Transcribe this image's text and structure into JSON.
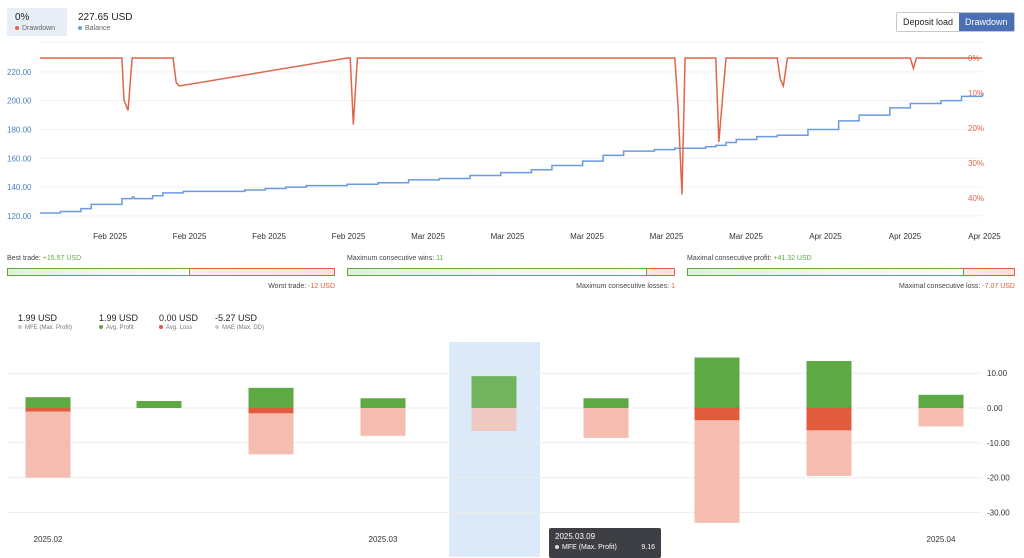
{
  "header": {
    "drawdown_value": "0%",
    "drawdown_label": "Drawdown",
    "balance_value": "227.65 USD",
    "balance_label": "Balance",
    "btn_deposit_load": "Deposit load",
    "btn_drawdown": "Drawdown"
  },
  "colors": {
    "drawdown": "#e0664a",
    "balance": "#6a9be0",
    "profit": "#5fa944",
    "loss": "#e05c3c",
    "mae": "#f4bdb0",
    "mfe_dot": "#cccccc",
    "highlight": "#d6e5f7"
  },
  "chart1": {
    "y_ticks_left": [
      "220.00",
      "200.00",
      "180.00",
      "160.00",
      "140.00",
      "120.00"
    ],
    "y_ticks_right": [
      "0%",
      "10%",
      "20%",
      "30%",
      "40%"
    ],
    "x_ticks": [
      "Feb 2025",
      "Feb 2025",
      "Feb 2025",
      "Feb 2025",
      "Mar 2025",
      "Mar 2025",
      "Mar 2025",
      "Mar 2025",
      "Mar 2025",
      "Apr 2025",
      "Apr 2025",
      "Apr 2025"
    ]
  },
  "stats": {
    "best_trade_label": "Best trade:",
    "best_trade_value": "+15.57 USD",
    "worst_trade_label": "Worst trade:",
    "worst_trade_value": "-12 USD",
    "max_consec_wins_label": "Maximum consecutive wins:",
    "max_consec_wins_value": "11",
    "max_consec_losses_label": "Maximum consecutive losses:",
    "max_consec_losses_value": "1",
    "max_consec_profit_label": "Maximal consecutive profit:",
    "max_consec_profit_value": "+41.32 USD",
    "max_consec_loss_label": "Maximal consecutive loss:",
    "max_consec_loss_value": "-7.07 USD",
    "best_fill": 0.56,
    "wins_fill": 0.92,
    "profit_fill": 0.85
  },
  "metrics": [
    {
      "value": "1.99 USD",
      "label": "MFE (Max. Profit)",
      "color": "#cccccc"
    },
    {
      "value": "1.99 USD",
      "label": "Avg. Profit",
      "color": "#5fa944"
    },
    {
      "value": "0.00 USD",
      "label": "Avg. Loss",
      "color": "#e05c3c"
    },
    {
      "value": "-5.27 USD",
      "label": "MAE (Max. DD)",
      "color": "#cccccc"
    }
  ],
  "chart_data": [
    {
      "type": "line",
      "title": "",
      "x_tick_labels": [
        "Feb 2025",
        "Feb 2025",
        "Feb 2025",
        "Feb 2025",
        "Mar 2025",
        "Mar 2025",
        "Mar 2025",
        "Mar 2025",
        "Mar 2025",
        "Apr 2025",
        "Apr 2025",
        "Apr 2025"
      ],
      "left_axis": {
        "ylim": [
          113,
          228
        ],
        "ticks": [
          120,
          140,
          160,
          180,
          200,
          220
        ]
      },
      "right_axis": {
        "ylim": [
          0,
          45
        ],
        "ticks": [
          0,
          10,
          20,
          30,
          40
        ],
        "unit": "%"
      },
      "series": [
        {
          "name": "Balance",
          "axis": "left",
          "x": [
            0,
            2,
            4,
            5,
            8,
            9,
            9.2,
            11,
            12,
            14,
            20,
            22,
            24,
            26,
            30,
            33,
            36,
            39,
            42,
            45,
            48,
            50,
            53,
            55,
            57,
            60,
            62,
            65,
            66,
            67,
            68,
            70,
            72,
            75,
            78,
            80,
            83,
            85,
            88,
            90,
            92
          ],
          "y": [
            122,
            123,
            125,
            128,
            132,
            133,
            132,
            134,
            136,
            137,
            138,
            139,
            140,
            141,
            142,
            143,
            145,
            146,
            148,
            150,
            152,
            155,
            158,
            162,
            165,
            166,
            167,
            168,
            169,
            171,
            173,
            175,
            176,
            180,
            186,
            190,
            195,
            198,
            200,
            203,
            205
          ]
        },
        {
          "name": "Drawdown",
          "axis": "right",
          "x": [
            0,
            8,
            8.2,
            8.6,
            9,
            13,
            13.3,
            13.6,
            30,
            30.3,
            30.6,
            31,
            62,
            62.3,
            62.7,
            63,
            66,
            66.3,
            66.7,
            67,
            72,
            72.3,
            72.6,
            73,
            85,
            85.3,
            85.6,
            86,
            91,
            92
          ],
          "y": [
            0,
            0,
            12,
            15,
            0,
            0,
            7,
            8,
            0,
            0,
            19,
            0,
            0,
            13,
            39,
            0,
            0,
            24,
            10,
            0,
            0,
            6,
            8,
            0,
            0,
            3,
            0,
            0,
            0,
            0
          ]
        }
      ]
    },
    {
      "type": "bar",
      "title": "",
      "categories": [
        "2025.02",
        "",
        "",
        "",
        "2025.03",
        "",
        "",
        "",
        "2025.04"
      ],
      "x_tick_labels": [
        "2025.02",
        "2025.03",
        "2025.04"
      ],
      "ylim": [
        -35,
        20
      ],
      "y_ticks": [
        "10.00",
        "0.00",
        "-10.00",
        "-20.00",
        "-30.00"
      ],
      "series": [
        {
          "name": "MFE (Max. Profit)",
          "values": [
            3.1,
            2.0,
            5.8,
            2.8,
            9.16,
            2.8,
            14.5,
            13.5,
            3.8
          ]
        },
        {
          "name": "Avg. Profit",
          "values": [
            3.1,
            2.0,
            5.8,
            2.8,
            9.16,
            2.8,
            14.5,
            13.5,
            3.8
          ]
        },
        {
          "name": "Avg. Loss",
          "values": [
            -1,
            0,
            -1.5,
            0,
            0,
            0,
            -3.5,
            -6.4,
            0
          ]
        },
        {
          "name": "MAE (Max. DD)",
          "values": [
            -20,
            0,
            -13.3,
            -8,
            -6.6,
            -8.6,
            -33,
            -19.5,
            -5.3
          ]
        }
      ]
    }
  ],
  "tooltip": {
    "date": "2025.03.09",
    "row1_label": "MFE (Max. Profit)",
    "row1_value": "9.16"
  }
}
